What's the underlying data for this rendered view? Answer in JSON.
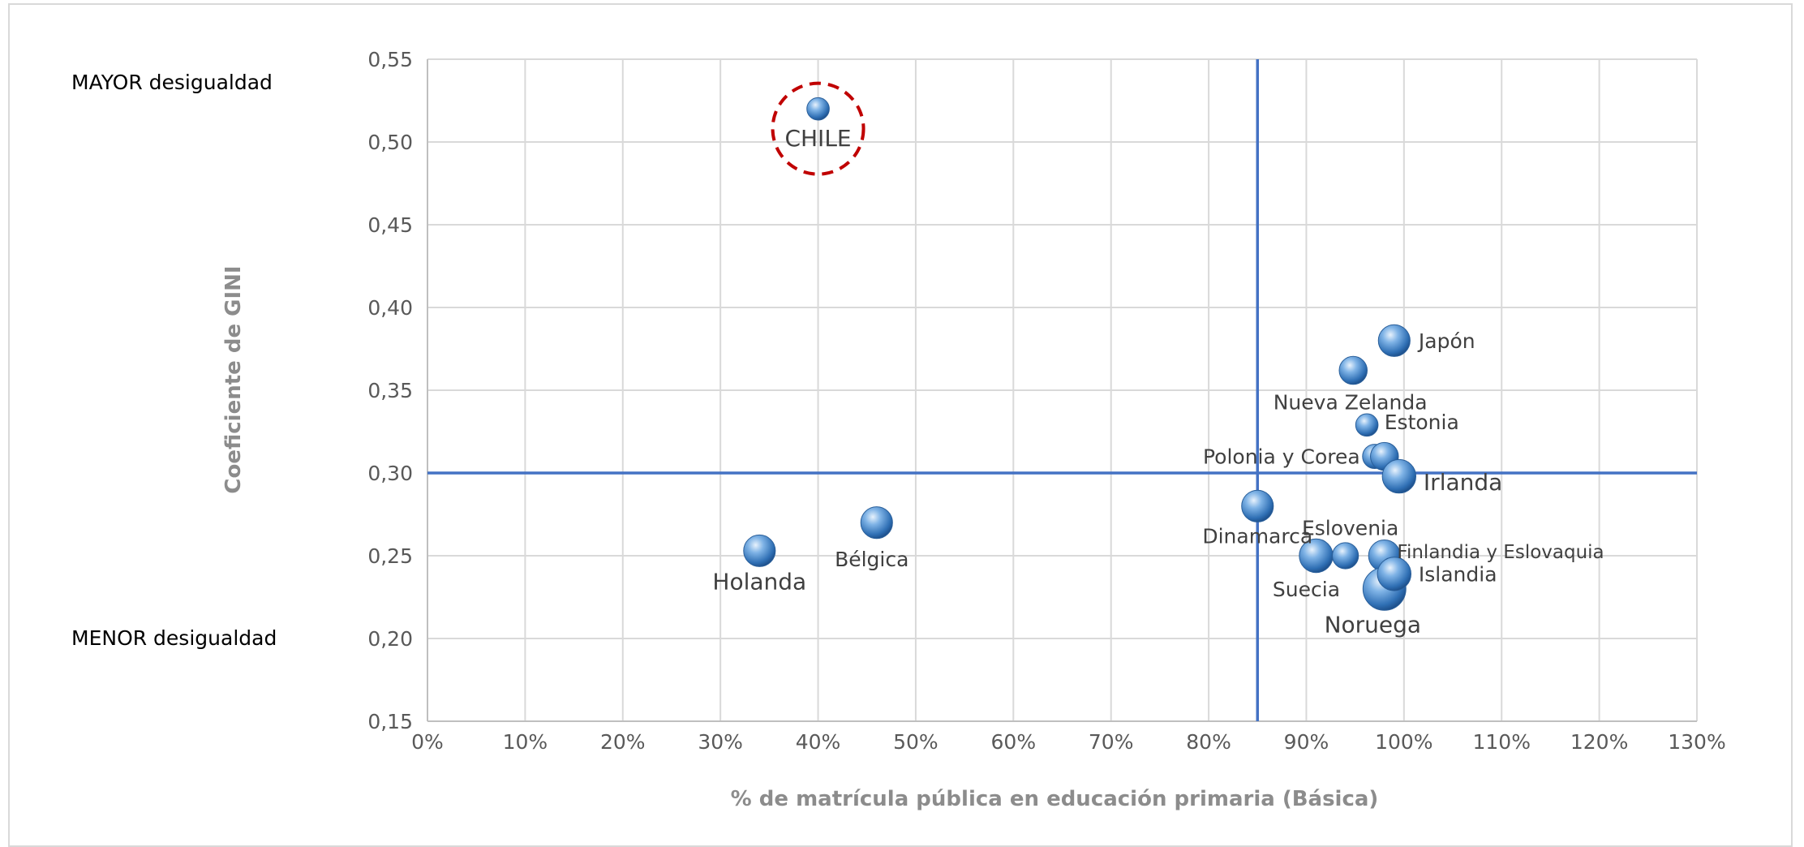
{
  "chart_data": {
    "type": "scatter",
    "title": "",
    "xlabel": "% de matrícula pública en educación primaria (Básica)",
    "ylabel": "Coeficiente de GINI",
    "xlim": [
      0,
      130
    ],
    "ylim": [
      0.15,
      0.55
    ],
    "x_ticks": [
      0,
      10,
      20,
      30,
      40,
      50,
      60,
      70,
      80,
      90,
      100,
      110,
      120,
      130
    ],
    "x_tick_labels": [
      "0%",
      "10%",
      "20%",
      "30%",
      "40%",
      "50%",
      "60%",
      "70%",
      "80%",
      "90%",
      "100%",
      "110%",
      "120%",
      "130%"
    ],
    "y_ticks": [
      0.15,
      0.2,
      0.25,
      0.3,
      0.35,
      0.4,
      0.45,
      0.5,
      0.55
    ],
    "y_tick_labels": [
      "0,15",
      "0,20",
      "0,25",
      "0,30",
      "0,35",
      "0,40",
      "0,45",
      "0,50",
      "0,55"
    ],
    "grid": true,
    "reference_lines": {
      "x": 85,
      "y": 0.3,
      "color": "#4472c4"
    },
    "annotations": {
      "top": "MAYOR desigualdad",
      "bottom": "MENOR desigualdad"
    },
    "highlight": {
      "point": "CHILE",
      "style": "dashed-circle",
      "color": "#c00000"
    },
    "marker_color": "#5b9bd5",
    "points": [
      {
        "x": 40.0,
        "y": 0.52,
        "size": 0.6
      },
      {
        "x": 34.0,
        "y": 0.253,
        "size": 0.85
      },
      {
        "x": 46.0,
        "y": 0.27,
        "size": 0.85
      },
      {
        "x": 85.0,
        "y": 0.28,
        "size": 0.85
      },
      {
        "x": 91.0,
        "y": 0.25,
        "size": 0.9
      },
      {
        "x": 94.0,
        "y": 0.25,
        "size": 0.7
      },
      {
        "x": 94.8,
        "y": 0.362,
        "size": 0.75
      },
      {
        "x": 96.2,
        "y": 0.329,
        "size": 0.6
      },
      {
        "x": 97.0,
        "y": 0.31,
        "size": 0.65
      },
      {
        "x": 98.0,
        "y": 0.31,
        "size": 0.75
      },
      {
        "x": 98.0,
        "y": 0.25,
        "size": 0.85
      },
      {
        "x": 98.0,
        "y": 0.23,
        "size": 1.15
      },
      {
        "x": 99.0,
        "y": 0.38,
        "size": 0.85
      },
      {
        "x": 99.0,
        "y": 0.239,
        "size": 0.9
      },
      {
        "x": 99.5,
        "y": 0.298,
        "size": 0.9
      }
    ],
    "point_labels": [
      {
        "text": "CHILE",
        "x": 40.0,
        "y": 0.502,
        "anchor": "middle",
        "size": "large"
      },
      {
        "text": "Holanda",
        "x": 34.0,
        "y": 0.234,
        "anchor": "middle",
        "size": "large"
      },
      {
        "text": "Bélgica",
        "x": 45.5,
        "y": 0.248,
        "anchor": "middle",
        "size": "normal"
      },
      {
        "text": "Japón",
        "x": 101.5,
        "y": 0.38,
        "anchor": "start",
        "size": "normal"
      },
      {
        "text": "Nueva Zelanda",
        "x": 94.5,
        "y": 0.343,
        "anchor": "middle",
        "size": "normal"
      },
      {
        "text": "Estonia",
        "x": 98.0,
        "y": 0.331,
        "anchor": "start",
        "size": "normal"
      },
      {
        "text": "Polonia y Corea",
        "x": 95.5,
        "y": 0.31,
        "anchor": "end",
        "size": "normal"
      },
      {
        "text": "Irlanda",
        "x": 102.0,
        "y": 0.294,
        "anchor": "start",
        "size": "large"
      },
      {
        "text": "Dinamarca",
        "x": 85.0,
        "y": 0.262,
        "anchor": "middle",
        "size": "normal"
      },
      {
        "text": "Eslovenia",
        "x": 94.5,
        "y": 0.267,
        "anchor": "middle",
        "size": "normal"
      },
      {
        "text": "Finlandia y Eslovaquia",
        "x": 99.3,
        "y": 0.253,
        "anchor": "start",
        "size": "small"
      },
      {
        "text": "Islandia",
        "x": 101.5,
        "y": 0.239,
        "anchor": "start",
        "size": "normal"
      },
      {
        "text": "Suecia",
        "x": 90.0,
        "y": 0.23,
        "anchor": "middle",
        "size": "normal"
      },
      {
        "text": "Noruega",
        "x": 96.8,
        "y": 0.208,
        "anchor": "middle",
        "size": "large"
      }
    ]
  }
}
